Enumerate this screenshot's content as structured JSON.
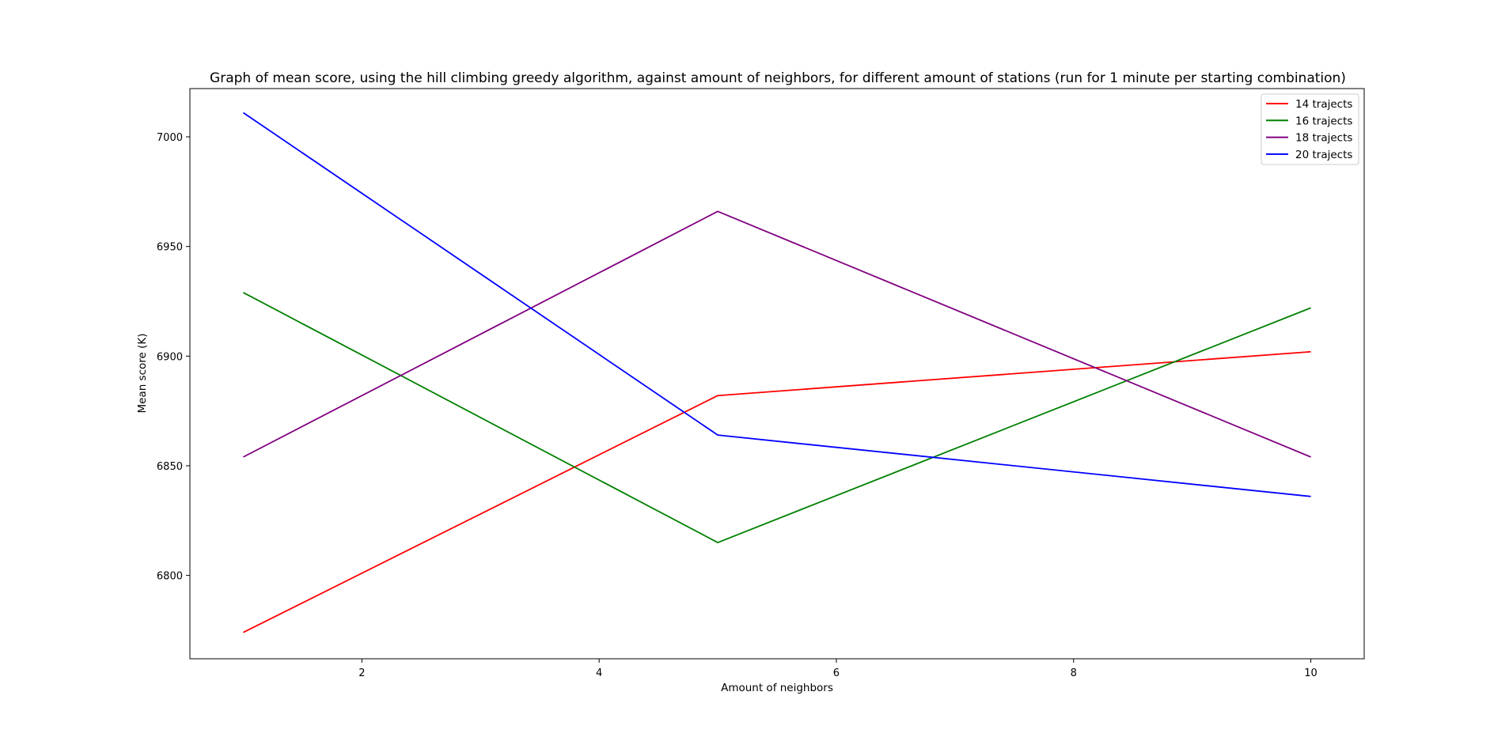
{
  "chart_data": {
    "type": "line",
    "title": "Graph of mean score, using the hill climbing greedy algorithm, against amount of neighbors, for different amount of stations (run for 1 minute per starting combination)",
    "xlabel": "Amount of neighbors",
    "ylabel": "Mean score (K)",
    "x": [
      1,
      5,
      10
    ],
    "xlim": [
      0.55,
      10.45
    ],
    "ylim": [
      6762,
      7022
    ],
    "xticks": [
      2,
      4,
      6,
      8,
      10
    ],
    "yticks": [
      6800,
      6850,
      6900,
      6950,
      7000
    ],
    "grid": false,
    "legend_position": "top-right",
    "series": [
      {
        "name": "14 trajects",
        "color": "#ff0000",
        "values": [
          6774,
          6882,
          6902
        ]
      },
      {
        "name": "16 trajects",
        "color": "#008000",
        "values": [
          6929,
          6815,
          6922
        ]
      },
      {
        "name": "18 trajects",
        "color": "#800080",
        "values": [
          6854,
          6966,
          6854
        ]
      },
      {
        "name": "20 trajects",
        "color": "#0000ff",
        "values": [
          7011,
          6864,
          6836
        ]
      }
    ]
  }
}
